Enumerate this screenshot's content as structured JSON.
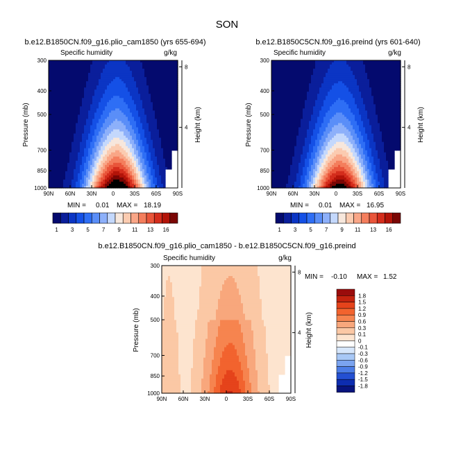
{
  "figure": {
    "title": "SON"
  },
  "chart_data": [
    {
      "type": "heatmap",
      "panel": "left",
      "case_title": "b.e12.B1850CN.f09_g16.plio_cam1850 (yrs 655-694)",
      "variable": "Specific humidity",
      "units": "g/kg",
      "xlabel": "",
      "ylabel": "Pressure (mb)",
      "y2label": "Height (km)",
      "x_ticks": [
        "90N",
        "60N",
        "30N",
        "0",
        "30S",
        "60S",
        "90S"
      ],
      "x_tick_values": [
        90,
        60,
        30,
        0,
        -30,
        -60,
        -90
      ],
      "y_ticks": [
        "300",
        "400",
        "500",
        "700",
        "850",
        "1000"
      ],
      "y_tick_values": [
        300,
        400,
        500,
        700,
        850,
        1000
      ],
      "y2_ticks": [
        "8",
        "4"
      ],
      "y2_tick_values": [
        8,
        4
      ],
      "ylim": [
        300,
        1000
      ],
      "xlim": [
        90,
        -90
      ],
      "min_label": "MIN =",
      "min_value": "0.01",
      "max_label": "MAX =",
      "max_value": "18.19",
      "peak_lat": -5,
      "contour_levels": [
        1,
        2,
        3,
        4,
        5,
        6,
        7,
        8,
        9,
        10,
        11,
        12,
        13,
        14,
        15,
        16
      ]
    },
    {
      "type": "heatmap",
      "panel": "right",
      "case_title": "b.e12.B1850C5CN.f09_g16.preind (yrs 601-640)",
      "variable": "Specific humidity",
      "units": "g/kg",
      "xlabel": "",
      "ylabel": "Pressure (mb)",
      "y2label": "Height (km)",
      "x_ticks": [
        "90N",
        "60N",
        "30N",
        "0",
        "30S",
        "60S",
        "90S"
      ],
      "x_tick_values": [
        90,
        60,
        30,
        0,
        -30,
        -60,
        -90
      ],
      "y_ticks": [
        "300",
        "400",
        "500",
        "700",
        "850",
        "1000"
      ],
      "y_tick_values": [
        300,
        400,
        500,
        700,
        850,
        1000
      ],
      "y2_ticks": [
        "8",
        "4"
      ],
      "y2_tick_values": [
        8,
        4
      ],
      "ylim": [
        300,
        1000
      ],
      "xlim": [
        90,
        -90
      ],
      "min_label": "MIN =",
      "min_value": "0.01",
      "max_label": "MAX =",
      "max_value": "16.95",
      "peak_lat": -5,
      "contour_levels": [
        1,
        2,
        3,
        4,
        5,
        6,
        7,
        8,
        9,
        10,
        11,
        12,
        13,
        14,
        15,
        16
      ]
    },
    {
      "type": "heatmap",
      "panel": "difference",
      "case_title": "b.e12.B1850CN.f09_g16.plio_cam1850 - b.e12.B1850C5CN.f09_g16.preind",
      "variable": "Specific humidity",
      "units": "g/kg",
      "xlabel": "",
      "ylabel": "Pressure (mb)",
      "y2label": "Height (km)",
      "x_ticks": [
        "90N",
        "60N",
        "30N",
        "0",
        "30S",
        "60S",
        "90S"
      ],
      "x_tick_values": [
        90,
        60,
        30,
        0,
        -30,
        -60,
        -90
      ],
      "y_ticks": [
        "300",
        "400",
        "500",
        "700",
        "850",
        "1000"
      ],
      "y_tick_values": [
        300,
        400,
        500,
        700,
        850,
        1000
      ],
      "y2_ticks": [
        "8",
        "4"
      ],
      "y2_tick_values": [
        8,
        4
      ],
      "ylim": [
        300,
        1000
      ],
      "xlim": [
        90,
        -90
      ],
      "min_label": "MIN =",
      "min_value": "-0.10",
      "max_label": "MAX =",
      "max_value": "1.52",
      "contour_levels": [
        -1.8,
        -1.5,
        -1.2,
        -0.9,
        -0.6,
        -0.3,
        -0.1,
        0,
        0.1,
        0.3,
        0.6,
        0.9,
        1.2,
        1.5,
        1.8
      ]
    }
  ],
  "colorbars": {
    "absolute": {
      "labels": [
        "1",
        "3",
        "5",
        "7",
        "9",
        "11",
        "13",
        "16"
      ],
      "colors": [
        "#040a6e",
        "#0a1e9b",
        "#0b35c4",
        "#1450e6",
        "#2e6ef5",
        "#5a8ef8",
        "#8db0fa",
        "#c4d8fc",
        "#f7e7dc",
        "#fbcbb0",
        "#f9a687",
        "#f47e5d",
        "#e9553a",
        "#d42d1c",
        "#b31409",
        "#7a0604"
      ]
    },
    "difference": {
      "labels": [
        "1.8",
        "1.5",
        "1.2",
        "0.9",
        "0.6",
        "0.3",
        "0.1",
        "0",
        "-0.1",
        "-0.3",
        "-0.6",
        "-0.9",
        "-1.2",
        "-1.5",
        "-1.8"
      ],
      "colors": [
        "#9a0c0c",
        "#c4230f",
        "#e5431b",
        "#f2632e",
        "#f6844f",
        "#f8a77c",
        "#fbc8a5",
        "#fde4cf",
        "#ffffff",
        "#d6e6fb",
        "#a8c8f6",
        "#7ba4f0",
        "#4c7de6",
        "#2450d2",
        "#0d2db0",
        "#08147e"
      ]
    }
  }
}
